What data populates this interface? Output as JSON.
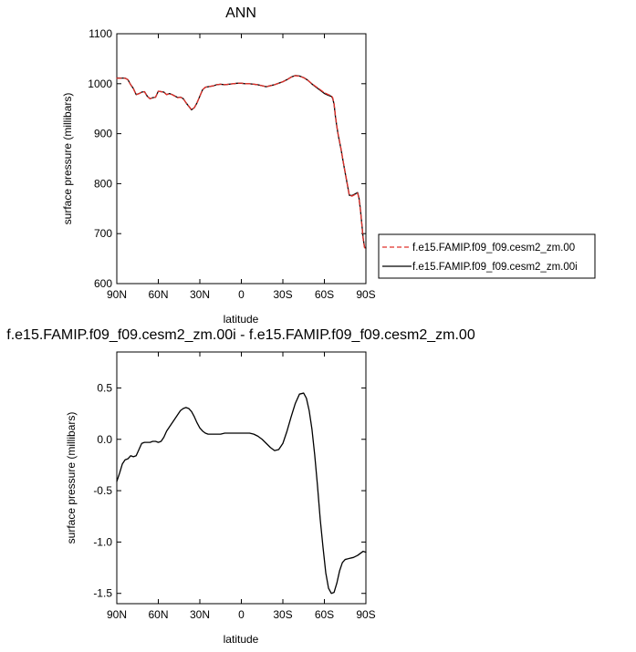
{
  "chart_data": [
    {
      "type": "line",
      "title": "ANN",
      "xlabel": "latitude",
      "ylabel": "surface pressure (millibars)",
      "xlim": [
        90,
        -90
      ],
      "ylim": [
        600,
        1100
      ],
      "xticks": [
        90,
        60,
        30,
        0,
        -30,
        -60,
        -90
      ],
      "xticklabels": [
        "90N",
        "60N",
        "30N",
        "0",
        "30S",
        "60S",
        "90S"
      ],
      "yticks": [
        600,
        700,
        800,
        900,
        1000,
        1100
      ],
      "yticklabels": [
        "600",
        "700",
        "800",
        "900",
        "1000",
        "1100"
      ],
      "grid": false,
      "legend_position": "right-outside",
      "series": [
        {
          "name": "f.e15.FAMIP.f09_f09.cesm2_zm.00",
          "color": "#e0302a",
          "dash": "dashed",
          "x": [
            90,
            86,
            84,
            82,
            80,
            78,
            76,
            74,
            72,
            70,
            68,
            66,
            64,
            62,
            60,
            58,
            56,
            54,
            52,
            50,
            48,
            46,
            44,
            42,
            40,
            38,
            36,
            34,
            32,
            30,
            28,
            26,
            24,
            22,
            20,
            18,
            15,
            12,
            9,
            6,
            3,
            0,
            -3,
            -6,
            -9,
            -12,
            -15,
            -18,
            -21,
            -24,
            -27,
            -30,
            -33,
            -36,
            -39,
            -42,
            -45,
            -48,
            -51,
            -54,
            -57,
            -60,
            -63,
            -65,
            -66,
            -67,
            -68,
            -69,
            -70,
            -72,
            -74,
            -76,
            -78,
            -80,
            -82,
            -84,
            -85,
            -86,
            -87,
            -88,
            -89,
            -90
          ],
          "values": [
            1011,
            1011,
            1011,
            1008,
            998,
            990,
            978,
            980,
            983,
            984,
            975,
            970,
            972,
            973,
            985,
            984,
            983,
            978,
            980,
            978,
            975,
            972,
            973,
            970,
            962,
            955,
            948,
            952,
            962,
            975,
            988,
            993,
            994,
            995,
            996,
            998,
            999,
            998,
            999,
            1000,
            1001,
            1001,
            1000,
            1000,
            999,
            998,
            996,
            994,
            996,
            998,
            1001,
            1004,
            1008,
            1013,
            1016,
            1015,
            1012,
            1007,
            1000,
            994,
            988,
            982,
            978,
            976,
            972,
            960,
            935,
            915,
            898,
            870,
            838,
            808,
            777,
            775,
            778,
            781,
            770,
            748,
            720,
            690,
            672,
            670
          ]
        },
        {
          "name": "f.e15.FAMIP.f09_f09.cesm2_zm.00i",
          "color": "#000000",
          "dash": "solid",
          "x": [
            90,
            86,
            84,
            82,
            80,
            78,
            76,
            74,
            72,
            70,
            68,
            66,
            64,
            62,
            60,
            58,
            56,
            54,
            52,
            50,
            48,
            46,
            44,
            42,
            40,
            38,
            36,
            34,
            32,
            30,
            28,
            26,
            24,
            22,
            20,
            18,
            15,
            12,
            9,
            6,
            3,
            0,
            -3,
            -6,
            -9,
            -12,
            -15,
            -18,
            -21,
            -24,
            -27,
            -30,
            -33,
            -36,
            -39,
            -42,
            -45,
            -48,
            -51,
            -54,
            -57,
            -60,
            -63,
            -65,
            -66,
            -67,
            -68,
            -69,
            -70,
            -72,
            -74,
            -76,
            -78,
            -80,
            -82,
            -84,
            -85,
            -86,
            -87,
            -88,
            -89,
            -90
          ],
          "values": [
            1011.4,
            1011.2,
            1011.2,
            1008.2,
            998.2,
            990.2,
            978.2,
            980.2,
            983.2,
            984.1,
            975.0,
            970.0,
            972.0,
            973.0,
            985.0,
            984.1,
            983.2,
            978.3,
            980.3,
            978.3,
            975.3,
            972.3,
            973.2,
            970.1,
            961.9,
            954.8,
            947.8,
            951.9,
            961.9,
            974.9,
            987.9,
            992.9,
            993.9,
            994.9,
            995.9,
            997.9,
            998.9,
            997.9,
            998.9,
            999.9,
            1000.9,
            1000.9,
            999.9,
            999.9,
            998.9,
            997.9,
            995.9,
            994.0,
            996.1,
            998.1,
            1001.0,
            1004.0,
            1008.2,
            1013.3,
            1016.4,
            1015.4,
            1012.3,
            1007.0,
            999.5,
            993.0,
            986.8,
            980.5,
            976.5,
            974.7,
            970.8,
            958.9,
            934.0,
            914.1,
            897.1,
            869.2,
            837.5,
            806.9,
            776.8,
            776.2,
            779.2,
            782.2,
            771.2,
            749.2,
            721.1,
            691.1,
            673.1,
            671.1
          ]
        }
      ]
    },
    {
      "type": "line",
      "title": "f.e15.FAMIP.f09_f09.cesm2_zm.00i - f.e15.FAMIP.f09_f09.cesm2_zm.00",
      "xlabel": "latitude",
      "ylabel": "surface pressure (millibars)",
      "xlim": [
        90,
        -90
      ],
      "ylim": [
        -1.6,
        0.85
      ],
      "xticks": [
        90,
        60,
        30,
        0,
        -30,
        -60,
        -90
      ],
      "xticklabels": [
        "90N",
        "60N",
        "30N",
        "0",
        "30S",
        "60S",
        "90S"
      ],
      "yticks": [
        -1.5,
        -1.0,
        -0.5,
        0.0,
        0.5
      ],
      "yticklabels": [
        "-1.5",
        "-1.0",
        "-0.5",
        "0.0",
        "0.5"
      ],
      "grid": false,
      "series": [
        {
          "color": "#000000",
          "dash": "solid",
          "x": [
            90,
            88,
            86,
            84,
            82,
            80,
            78,
            76,
            74,
            72,
            70,
            68,
            66,
            64,
            62,
            60,
            58,
            56,
            54,
            52,
            50,
            48,
            46,
            44,
            42,
            40,
            38,
            36,
            34,
            32,
            30,
            28,
            26,
            24,
            22,
            20,
            18,
            15,
            12,
            9,
            6,
            3,
            0,
            -3,
            -6,
            -9,
            -12,
            -15,
            -18,
            -21,
            -24,
            -27,
            -30,
            -33,
            -36,
            -39,
            -42,
            -45,
            -47,
            -49,
            -51,
            -53,
            -55,
            -57,
            -59,
            -61,
            -63,
            -65,
            -67,
            -69,
            -71,
            -73,
            -75,
            -78,
            -81,
            -84,
            -86,
            -88,
            -90
          ],
          "values": [
            -0.41,
            -0.33,
            -0.24,
            -0.2,
            -0.19,
            -0.16,
            -0.17,
            -0.16,
            -0.1,
            -0.04,
            -0.03,
            -0.03,
            -0.03,
            -0.02,
            -0.02,
            -0.03,
            -0.02,
            0.02,
            0.08,
            0.12,
            0.16,
            0.2,
            0.24,
            0.28,
            0.3,
            0.31,
            0.3,
            0.27,
            0.22,
            0.16,
            0.11,
            0.08,
            0.06,
            0.05,
            0.05,
            0.05,
            0.05,
            0.05,
            0.06,
            0.06,
            0.06,
            0.06,
            0.06,
            0.06,
            0.06,
            0.05,
            0.03,
            0.0,
            -0.04,
            -0.08,
            -0.11,
            -0.1,
            -0.04,
            0.08,
            0.22,
            0.35,
            0.44,
            0.45,
            0.4,
            0.28,
            0.1,
            -0.15,
            -0.45,
            -0.78,
            -1.05,
            -1.3,
            -1.45,
            -1.5,
            -1.49,
            -1.4,
            -1.28,
            -1.2,
            -1.17,
            -1.16,
            -1.15,
            -1.13,
            -1.11,
            -1.09,
            -1.1
          ]
        }
      ]
    }
  ]
}
